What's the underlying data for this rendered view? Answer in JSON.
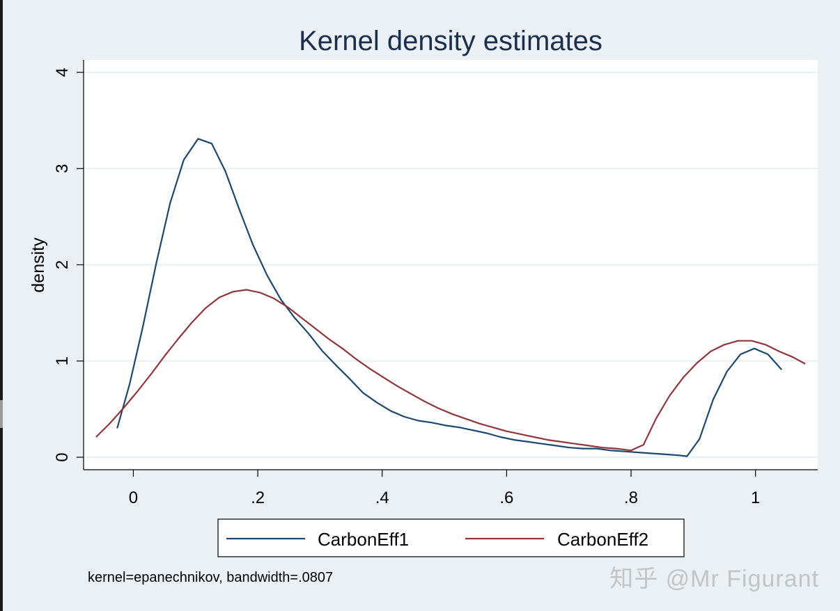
{
  "chart_data": {
    "type": "line",
    "title": "Kernel density estimates",
    "xlabel": "",
    "ylabel": "density",
    "xlim": [
      -0.08,
      1.1
    ],
    "ylim": [
      -0.13,
      4.13
    ],
    "xticks": [
      0,
      0.2,
      0.4,
      0.6,
      0.8,
      1
    ],
    "xtick_labels": [
      "0",
      ".2",
      ".4",
      ".6",
      ".8",
      "1"
    ],
    "yticks": [
      0,
      1,
      2,
      3,
      4
    ],
    "ytick_labels": [
      "0",
      "1",
      "2",
      "3",
      "4"
    ],
    "grid": "horizontal",
    "legend_position": "bottom",
    "note": "kernel=epanechnikov, bandwidth=.0807",
    "series": [
      {
        "name": "CarbonEff1",
        "color": "#1a476f",
        "x": [
          -0.026,
          -0.006,
          0.015,
          0.037,
          0.059,
          0.081,
          0.104,
          0.126,
          0.148,
          0.17,
          0.192,
          0.215,
          0.237,
          0.259,
          0.281,
          0.303,
          0.325,
          0.347,
          0.369,
          0.391,
          0.414,
          0.436,
          0.458,
          0.48,
          0.502,
          0.524,
          0.546,
          0.568,
          0.59,
          0.612,
          0.635,
          0.657,
          0.679,
          0.701,
          0.723,
          0.745,
          0.767,
          0.789,
          0.811,
          0.833,
          0.855,
          0.877,
          0.89,
          0.91,
          0.932,
          0.954,
          0.976,
          0.998,
          1.02,
          1.042
        ],
        "y": [
          0.3,
          0.76,
          1.35,
          2.02,
          2.64,
          3.09,
          3.31,
          3.26,
          2.97,
          2.58,
          2.21,
          1.89,
          1.64,
          1.45,
          1.29,
          1.11,
          0.96,
          0.82,
          0.67,
          0.57,
          0.48,
          0.42,
          0.38,
          0.36,
          0.33,
          0.31,
          0.28,
          0.25,
          0.21,
          0.18,
          0.16,
          0.14,
          0.12,
          0.1,
          0.09,
          0.09,
          0.07,
          0.06,
          0.05,
          0.04,
          0.03,
          0.02,
          0.01,
          0.19,
          0.6,
          0.89,
          1.07,
          1.13,
          1.07,
          0.91
        ]
      },
      {
        "name": "CarbonEff2",
        "color": "#90353b",
        "x": [
          -0.06,
          -0.038,
          -0.016,
          0.006,
          0.028,
          0.05,
          0.072,
          0.094,
          0.116,
          0.138,
          0.16,
          0.182,
          0.204,
          0.226,
          0.248,
          0.27,
          0.292,
          0.314,
          0.336,
          0.358,
          0.38,
          0.402,
          0.424,
          0.446,
          0.468,
          0.49,
          0.512,
          0.534,
          0.556,
          0.578,
          0.6,
          0.622,
          0.644,
          0.666,
          0.688,
          0.71,
          0.732,
          0.754,
          0.776,
          0.8,
          0.82,
          0.84,
          0.862,
          0.884,
          0.906,
          0.928,
          0.95,
          0.972,
          0.994,
          1.016,
          1.038,
          1.06,
          1.08
        ],
        "y": [
          0.21,
          0.35,
          0.51,
          0.68,
          0.86,
          1.05,
          1.23,
          1.4,
          1.55,
          1.66,
          1.72,
          1.74,
          1.71,
          1.65,
          1.56,
          1.45,
          1.34,
          1.23,
          1.13,
          1.02,
          0.92,
          0.83,
          0.74,
          0.66,
          0.58,
          0.51,
          0.45,
          0.4,
          0.35,
          0.31,
          0.27,
          0.24,
          0.21,
          0.18,
          0.16,
          0.14,
          0.12,
          0.1,
          0.09,
          0.07,
          0.13,
          0.4,
          0.64,
          0.83,
          0.98,
          1.1,
          1.17,
          1.21,
          1.21,
          1.17,
          1.1,
          1.04,
          0.97
        ]
      }
    ]
  },
  "watermark": "知乎 @Mr Figurant"
}
